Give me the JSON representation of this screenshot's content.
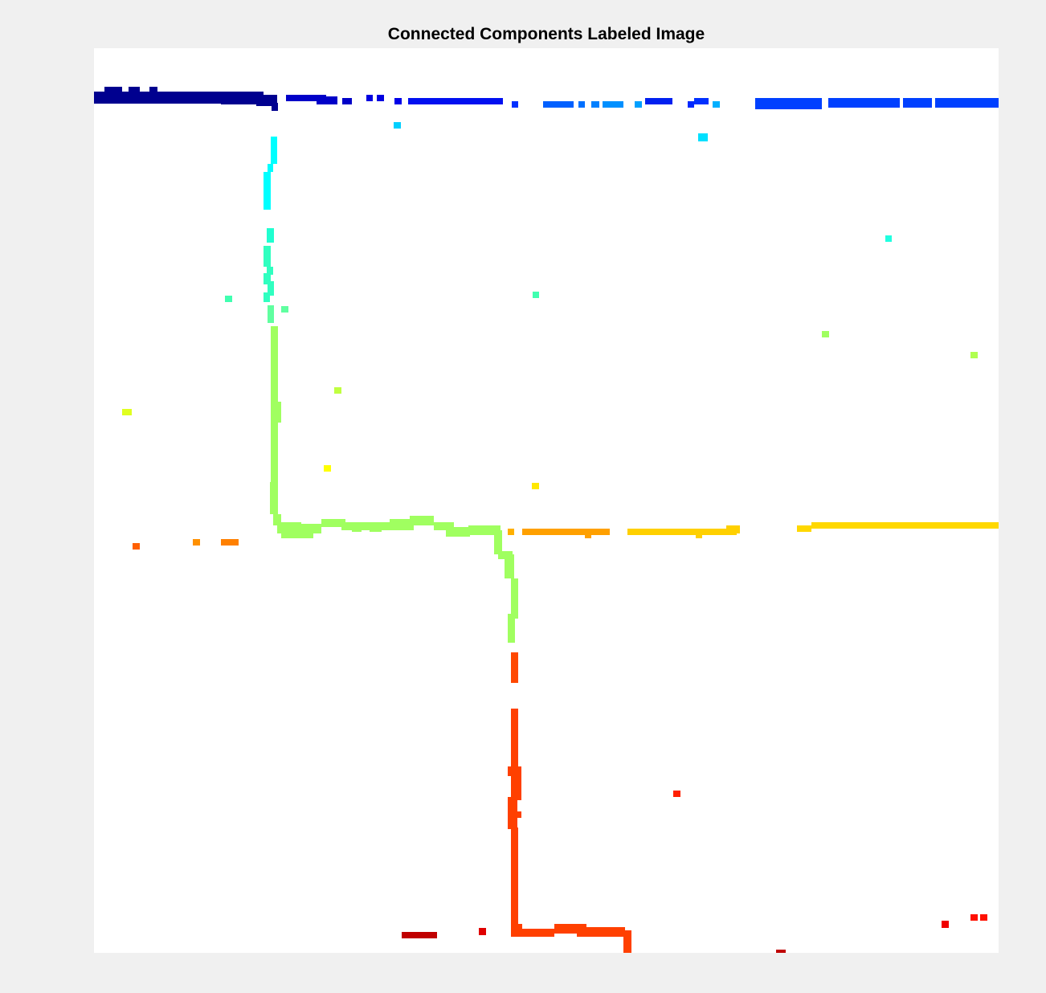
{
  "figure": {
    "title": "Connected Components Labeled Image"
  },
  "image": {
    "colormap": "jet",
    "background": "#ffffff"
  }
}
